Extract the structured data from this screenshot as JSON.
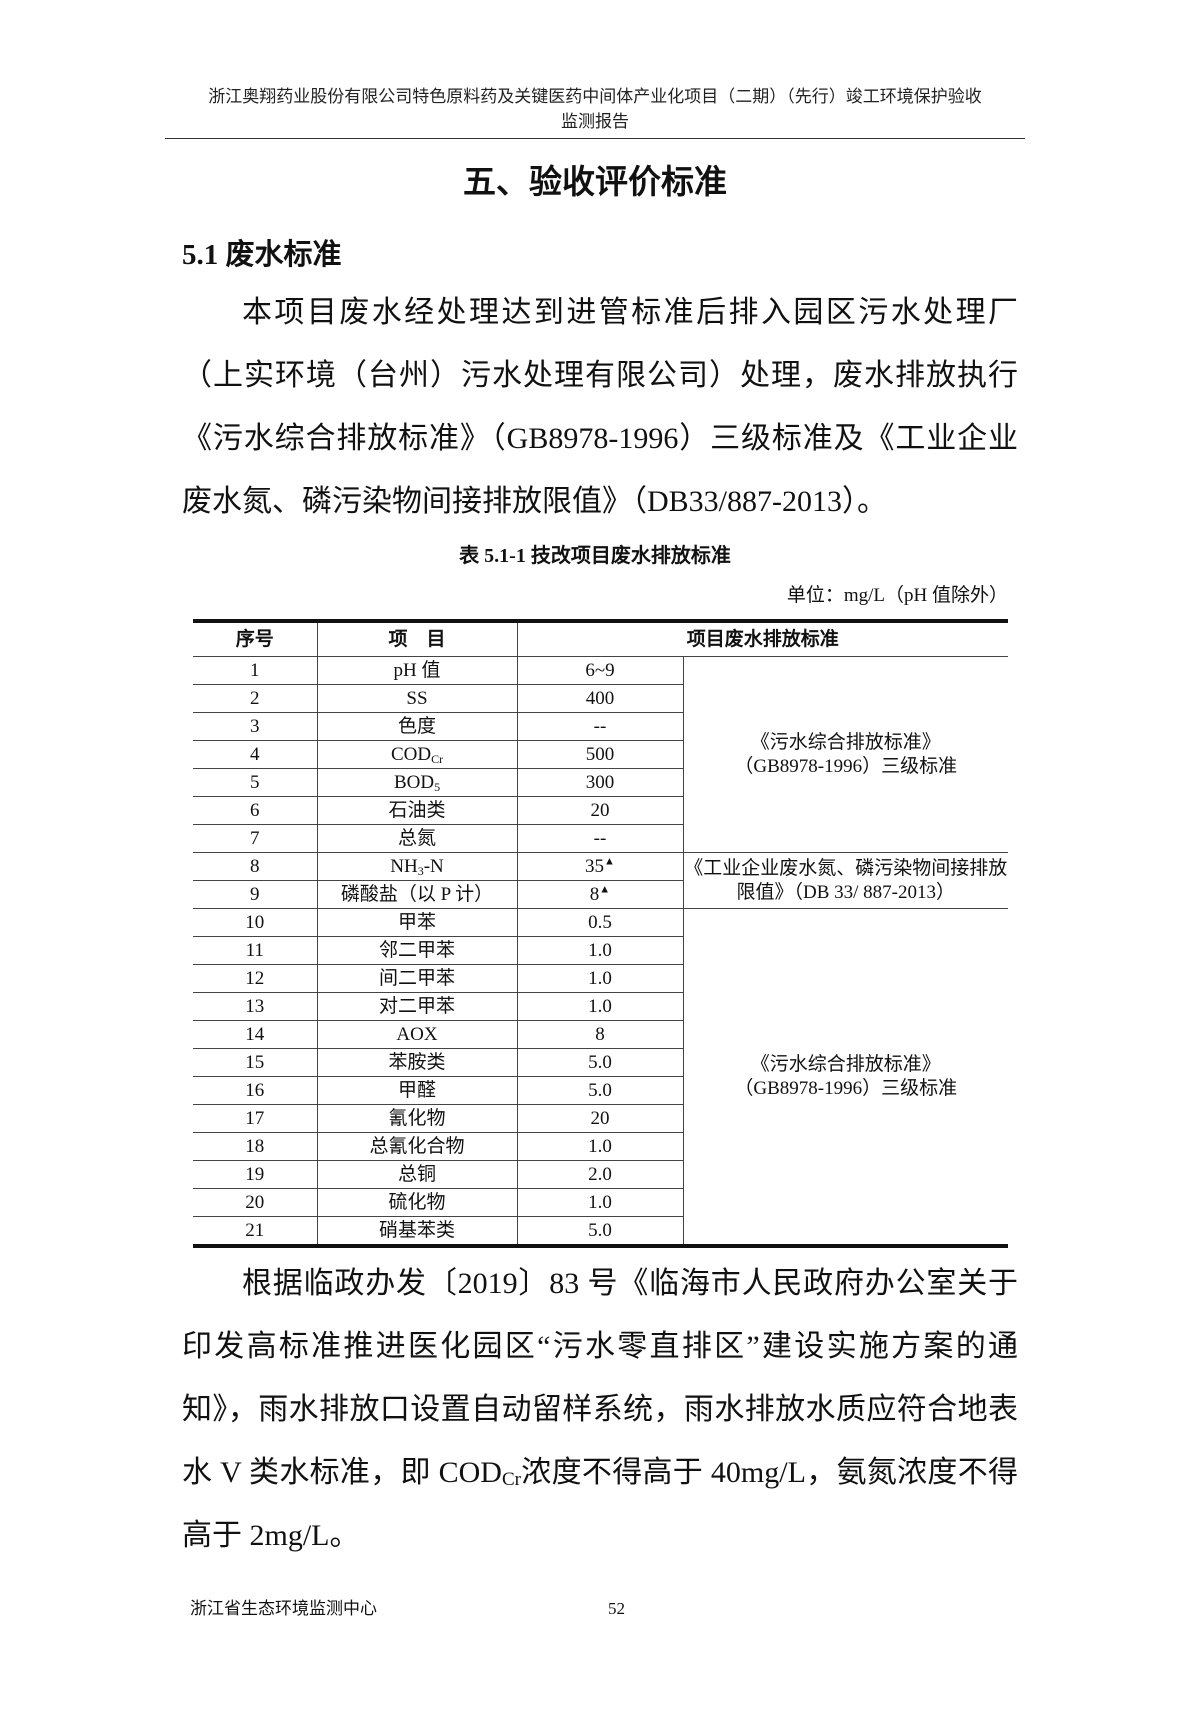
{
  "header": {
    "line1": "浙江奥翔药业股份有限公司特色原料药及关键医药中间体产业化项目（二期）（先行）竣工环境保护验收",
    "line2": "监测报告"
  },
  "chapter_title": "五、验收评价标准",
  "section_title": "5.1 废水标准",
  "paragraph1": "本项目废水经处理达到进管标准后排入园区污水处理厂（上实环境（台州）污水处理有限公司）处理，废水排放执行《污水综合排放标准》（GB8978-1996）三级标准及《工业企业废水氮、磷污染物间接排放限值》（DB33/887-2013）。",
  "table": {
    "caption": "表 5.1-1  技改项目废水排放标准",
    "unit": "单位：mg/L（pH 值除外）",
    "headers": [
      "序号",
      "项　目",
      "项目废水排放标准"
    ],
    "rows": [
      {
        "no": "1",
        "item": "pH 值",
        "value": "6~9"
      },
      {
        "no": "2",
        "item": "SS",
        "value": "400"
      },
      {
        "no": "3",
        "item": "色度",
        "value": "--"
      },
      {
        "no": "4",
        "item": "COD",
        "item_sub": "Cr",
        "value": "500"
      },
      {
        "no": "5",
        "item": "BOD",
        "item_sub": "5",
        "value": "300"
      },
      {
        "no": "6",
        "item": "石油类",
        "value": "20"
      },
      {
        "no": "7",
        "item": "总氮",
        "value": "--"
      },
      {
        "no": "8",
        "item": "NH",
        "item_sub": "3",
        "item_after": "-N",
        "value": "35",
        "mark": "▲"
      },
      {
        "no": "9",
        "item": "磷酸盐（以 P 计）",
        "value": "8",
        "mark": "▲"
      },
      {
        "no": "10",
        "item": "甲苯",
        "value": "0.5"
      },
      {
        "no": "11",
        "item": "邻二甲苯",
        "value": "1.0"
      },
      {
        "no": "12",
        "item": "间二甲苯",
        "value": "1.0"
      },
      {
        "no": "13",
        "item": "对二甲苯",
        "value": "1.0"
      },
      {
        "no": "14",
        "item": "AOX",
        "value": "8"
      },
      {
        "no": "15",
        "item": "苯胺类",
        "value": "5.0"
      },
      {
        "no": "16",
        "item": "甲醛",
        "value": "5.0"
      },
      {
        "no": "17",
        "item": "氰化物",
        "value": "20"
      },
      {
        "no": "18",
        "item": "总氰化合物",
        "value": "1.0"
      },
      {
        "no": "19",
        "item": "总铜",
        "value": "2.0"
      },
      {
        "no": "20",
        "item": "硫化物",
        "value": "1.0"
      },
      {
        "no": "21",
        "item": "硝基苯类",
        "value": "5.0"
      }
    ],
    "standards": [
      {
        "rows": "1-7",
        "line1": "《污水综合排放标准》",
        "line2": "（GB8978-1996）三级标准"
      },
      {
        "rows": "8-9",
        "line1": "《工业企业废水氮、磷污染物间接排放",
        "line2": "限值》（DB 33/ 887-2013）"
      },
      {
        "rows": "10-21",
        "line1": "《污水综合排放标准》",
        "line2": "（GB8978-1996）三级标准"
      }
    ]
  },
  "paragraph2": {
    "before": "根据临政办发〔2019〕83 号《临海市人民政府办公室关于印发高标准推进医化园区“污水零直排区”建设实施方案的通知》，雨水排放口设置自动留样系统，雨水排放水质应符合地表水 V 类水标准，即 COD",
    "sub": "Cr",
    "after": "浓度不得高于 40mg/L，氨氮浓度不得高于 2mg/L。"
  },
  "footer": {
    "org": "浙江省生态环境监测中心",
    "page": "52"
  }
}
